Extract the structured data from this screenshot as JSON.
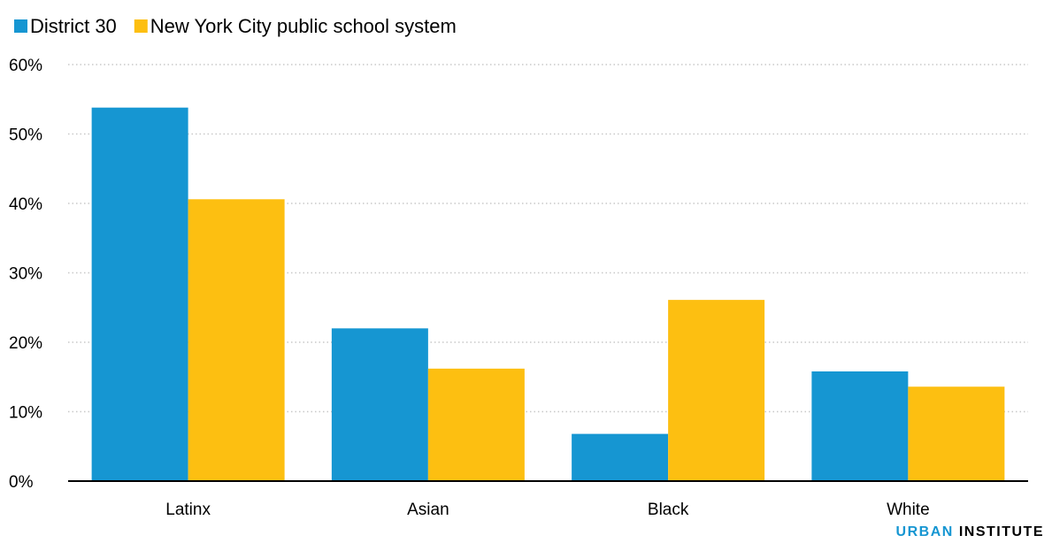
{
  "chart_data": {
    "type": "bar",
    "categories": [
      "Latinx",
      "Asian",
      "Black",
      "White"
    ],
    "series": [
      {
        "name": "District 30",
        "color": "#1696d2",
        "values": [
          53.8,
          22.0,
          6.8,
          15.8
        ]
      },
      {
        "name": "New York City public school system",
        "color": "#fdbf11",
        "values": [
          40.6,
          16.2,
          26.1,
          13.6
        ]
      }
    ],
    "y_ticks": [
      "0%",
      "10%",
      "20%",
      "30%",
      "40%",
      "50%",
      "60%"
    ],
    "ylim": [
      0,
      60
    ],
    "grid": true,
    "legend_position": "top-left"
  },
  "branding": {
    "part1": "URBAN",
    "part2": "INSTITUTE"
  }
}
